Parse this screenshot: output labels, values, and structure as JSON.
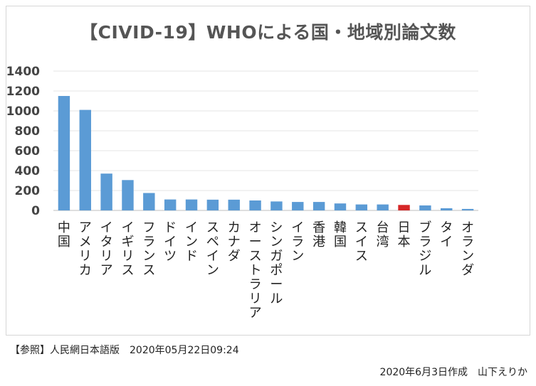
{
  "chart_data": {
    "type": "bar",
    "title": "【CIVID-19】WHOによる国・地域別論文数",
    "categories": [
      "中国",
      "アメリカ",
      "イタリア",
      "イギリス",
      "フランス",
      "ドイツ",
      "インド",
      "スペイン",
      "カナダ",
      "オーストラリア",
      "シンガポール",
      "イラン",
      "香港",
      "韓国",
      "スイス",
      "台湾",
      "日本",
      "ブラジル",
      "タイ",
      "オランダ"
    ],
    "values": [
      1150,
      1010,
      370,
      305,
      175,
      110,
      110,
      108,
      108,
      100,
      90,
      85,
      85,
      70,
      60,
      60,
      55,
      50,
      22,
      15
    ],
    "highlight_category": "日本",
    "bar_color": "#5b9bd5",
    "highlight_color": "#d62728",
    "grid_color": "#e6e6e6",
    "grid": true,
    "ylim": [
      0,
      1400
    ],
    "yticks": [
      0,
      200,
      400,
      600,
      800,
      1000,
      1200,
      1400
    ],
    "xlabel": "",
    "ylabel": ""
  },
  "footer": {
    "reference": "【参照】人民網日本語版　2020年05月22日09:24",
    "credit": "2020年6月3日作成　山下えりか"
  }
}
